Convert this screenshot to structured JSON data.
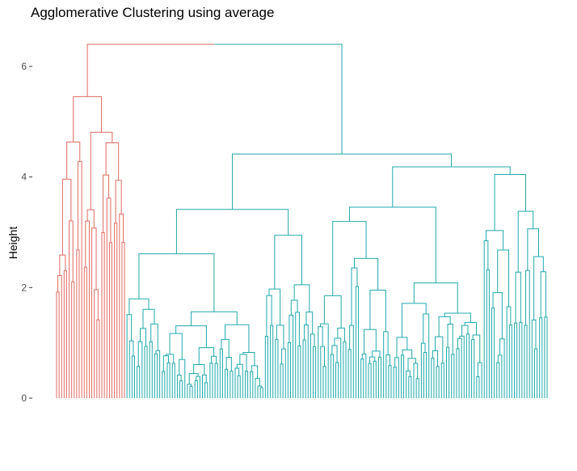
{
  "chart_data": {
    "type": "dendrogram",
    "title": "Agglomerative Clustering using average",
    "xlabel": "",
    "ylabel": "Height",
    "ylim": [
      0,
      6.5
    ],
    "y_ticks": [
      0,
      2,
      4,
      6
    ],
    "y_tick_labels": [
      "0",
      "2",
      "4",
      "6"
    ],
    "grid": false,
    "leaf_count": 196,
    "clusters": [
      {
        "color": "#E06B61",
        "leaf_count": 28,
        "merge_heights": [
          6.35,
          6.05,
          5.2,
          5.0,
          4.85,
          4.65,
          4.6,
          4.5,
          4.35,
          4.25,
          4.15,
          4.1,
          4.0,
          3.9,
          3.8,
          3.6,
          3.55,
          3.5,
          3.4,
          3.3,
          3.1,
          2.9,
          2.6,
          2.5,
          2.4,
          2.2,
          2.05
        ]
      },
      {
        "color": "#20A9AC",
        "leaf_count": 168,
        "merge_heights": [
          6.35,
          5.5,
          5.2,
          5.1,
          5.0,
          4.95,
          4.8,
          4.6,
          4.5,
          4.35,
          4.3,
          4.2,
          4.1,
          4.0,
          3.9,
          3.8,
          3.7,
          3.6,
          3.55,
          3.4,
          3.3,
          3.2,
          3.1,
          3.0,
          2.9,
          2.8,
          2.6,
          2.5,
          2.3,
          2.1,
          1.9,
          1.7,
          1.5,
          1.3,
          1.1,
          0.9,
          0.7,
          0.5,
          0.3,
          0.2
        ]
      }
    ],
    "root_height": 6.4
  }
}
